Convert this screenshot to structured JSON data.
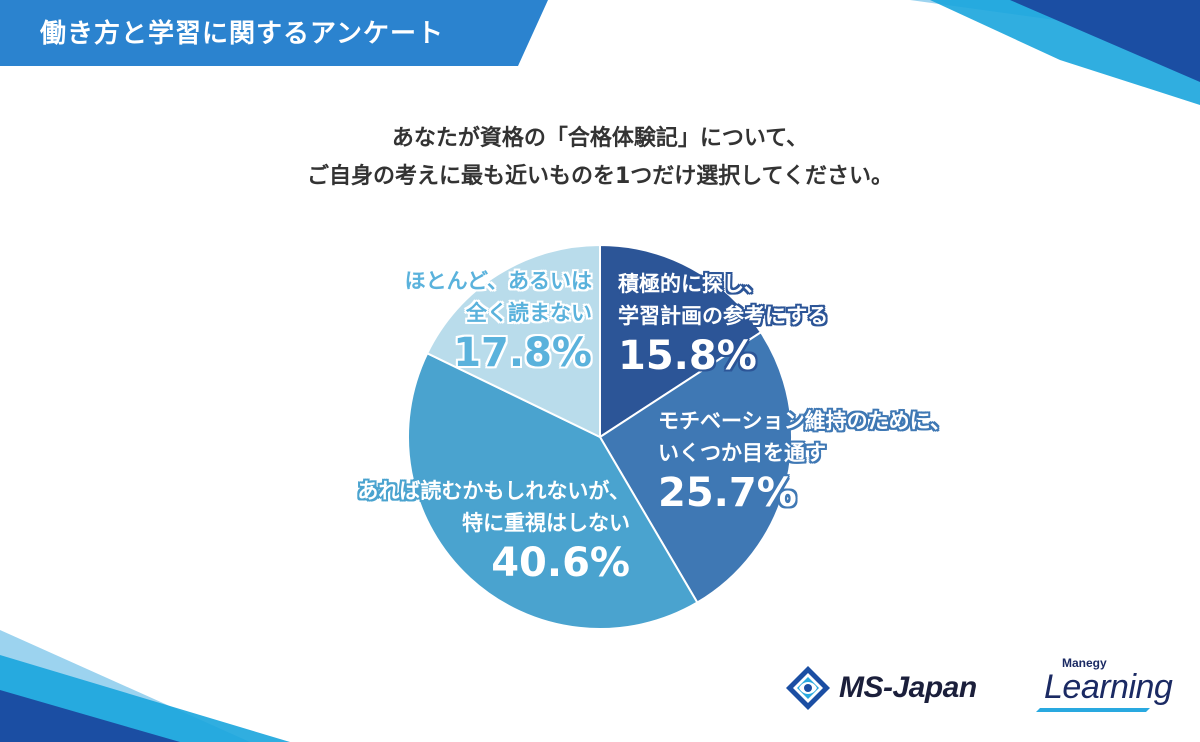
{
  "header": {
    "title": "働き方と学習に関するアンケート"
  },
  "question": {
    "line1": "あなたが資格の「合格体験記」について、",
    "line2": "ご自身の考えに最も近いものを1つだけ選択してください。"
  },
  "chart_data": {
    "type": "pie",
    "start_angle_deg": 0,
    "direction": "clockwise",
    "slices": [
      {
        "label_line1": "積極的に探し、",
        "label_line2": "学習計画の参考にする",
        "value": 15.8,
        "value_label": "15.8%",
        "color": "#2c5597"
      },
      {
        "label_line1": "モチベーション維持のために、",
        "label_line2": "いくつか目を通す",
        "value": 25.7,
        "value_label": "25.7%",
        "color": "#3f78b4"
      },
      {
        "label_line1": "あれば読むかもしれないが、",
        "label_line2": "特に重視はしない",
        "value": 40.6,
        "value_label": "40.6%",
        "color": "#4aa3cf"
      },
      {
        "label_line1": "ほとんど、あるいは",
        "label_line2": "全く読まない",
        "value": 17.8,
        "value_label": "17.8%",
        "color": "#b9dceb"
      }
    ]
  },
  "logos": {
    "ms_japan": "MS-Japan",
    "manegy": "Manegy",
    "learning": "Learning"
  },
  "colors": {
    "header_blue": "#2b83cf",
    "accent_dark": "#1b4ea3",
    "accent_cyan": "#29a9e0",
    "label_outline_blue": "#4aa3cf"
  }
}
